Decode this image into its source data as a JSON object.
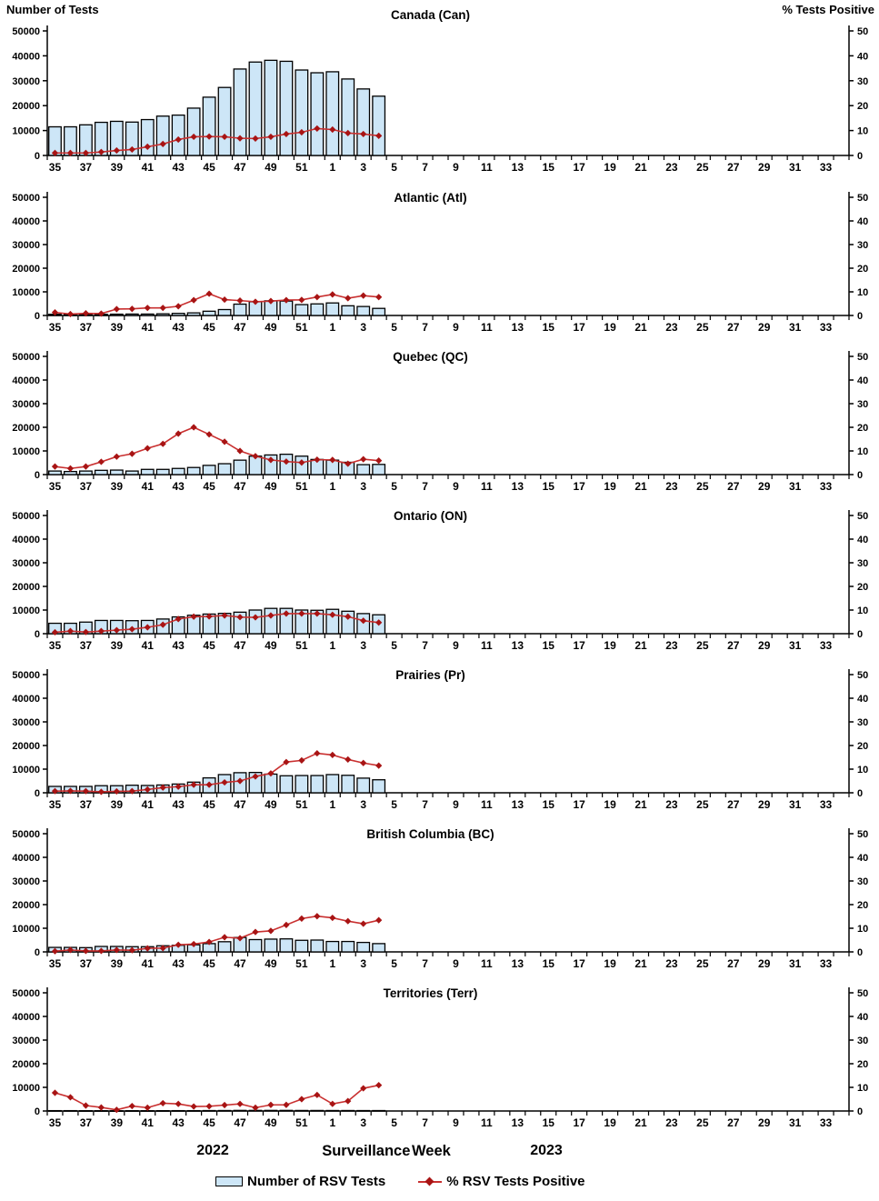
{
  "axes": {
    "left_title": "Number of Tests",
    "right_title": "% Tests Positive",
    "left_ticks": [
      "0",
      "10000",
      "20000",
      "30000",
      "40000",
      "50000"
    ],
    "right_ticks": [
      "0",
      "10",
      "20",
      "30",
      "40",
      "50"
    ],
    "left_max": 50000,
    "right_max": 50
  },
  "xaxis": {
    "tick_labels": [
      "35",
      "37",
      "39",
      "41",
      "43",
      "45",
      "47",
      "49",
      "51",
      "1",
      "3",
      "5",
      "7",
      "9",
      "11",
      "13",
      "15",
      "17",
      "19",
      "21",
      "23",
      "25",
      "27",
      "29",
      "31",
      "33"
    ]
  },
  "footer": {
    "year_left": "2022",
    "axis_title": "Surveillance Week",
    "year_right": "2023"
  },
  "legend": {
    "bar_label": "Number of RSV Tests",
    "line_label": "% RSV Tests Positive"
  },
  "colors": {
    "bar_fill": "#CDE6F7",
    "bar_border": "#000000",
    "line": "#C93030",
    "marker": "#A81414"
  },
  "chart_data": [
    {
      "type": "combo-bar-line",
      "title": "Canada (Can)",
      "x_weeks": [
        35,
        36,
        37,
        38,
        39,
        40,
        41,
        42,
        43,
        44,
        45,
        46,
        47,
        48,
        49,
        50,
        51,
        52,
        1,
        2,
        3,
        4
      ],
      "x_axis_range": "week 35 (2022) to week 34 (2023)",
      "left_ylim": [
        0,
        50000
      ],
      "right_ylim": [
        0,
        50
      ],
      "series": [
        {
          "name": "Number of RSV Tests",
          "type": "bar",
          "axis": "left",
          "values": [
            11500,
            11500,
            12300,
            13300,
            13700,
            13400,
            14400,
            15800,
            16200,
            19000,
            23400,
            27300,
            34700,
            37500,
            38200,
            37800,
            34300,
            33200,
            33600,
            30700,
            26700,
            23800
          ]
        },
        {
          "name": "% RSV Tests Positive",
          "type": "line",
          "axis": "right",
          "values": [
            1.0,
            1.0,
            1.0,
            1.4,
            2.0,
            2.4,
            3.5,
            4.6,
            6.4,
            7.5,
            7.6,
            7.5,
            6.9,
            6.8,
            7.5,
            8.6,
            9.3,
            10.8,
            10.4,
            9.0,
            8.6,
            7.9
          ]
        }
      ]
    },
    {
      "type": "combo-bar-line",
      "title": "Atlantic (Atl)",
      "x_weeks": [
        35,
        36,
        37,
        38,
        39,
        40,
        41,
        42,
        43,
        44,
        45,
        46,
        47,
        48,
        49,
        50,
        51,
        52,
        1,
        2,
        3,
        4
      ],
      "left_ylim": [
        0,
        50000
      ],
      "right_ylim": [
        0,
        50
      ],
      "series": [
        {
          "name": "Number of RSV Tests",
          "type": "bar",
          "axis": "left",
          "values": [
            500,
            450,
            500,
            500,
            550,
            600,
            600,
            700,
            900,
            1100,
            1800,
            2500,
            4800,
            5800,
            6200,
            6100,
            4600,
            4900,
            5300,
            4100,
            3800,
            3000
          ]
        },
        {
          "name": "% RSV Tests Positive",
          "type": "line",
          "axis": "right",
          "values": [
            1.3,
            0.6,
            0.9,
            0.8,
            2.7,
            2.8,
            3.2,
            3.2,
            3.9,
            6.5,
            9.2,
            6.7,
            6.3,
            5.8,
            6.1,
            6.5,
            6.6,
            7.8,
            8.9,
            7.3,
            8.4,
            7.8
          ]
        }
      ]
    },
    {
      "type": "combo-bar-line",
      "title": "Quebec (QC)",
      "x_weeks": [
        35,
        36,
        37,
        38,
        39,
        40,
        41,
        42,
        43,
        44,
        45,
        46,
        47,
        48,
        49,
        50,
        51,
        52,
        1,
        2,
        3,
        4
      ],
      "left_ylim": [
        0,
        50000
      ],
      "right_ylim": [
        0,
        50
      ],
      "series": [
        {
          "name": "Number of RSV Tests",
          "type": "bar",
          "axis": "left",
          "values": [
            1500,
            1300,
            1500,
            1800,
            1900,
            1500,
            2200,
            2200,
            2600,
            3000,
            3900,
            4600,
            6100,
            7800,
            8300,
            8600,
            7800,
            6400,
            6100,
            5200,
            4200,
            4300
          ]
        },
        {
          "name": "% RSV Tests Positive",
          "type": "line",
          "axis": "right",
          "values": [
            3.4,
            2.6,
            3.4,
            5.4,
            7.6,
            8.8,
            11.1,
            13.0,
            17.3,
            20.0,
            17.0,
            13.9,
            10.0,
            7.8,
            6.2,
            5.5,
            5.1,
            6.3,
            6.2,
            4.6,
            6.5,
            5.9
          ]
        }
      ]
    },
    {
      "type": "combo-bar-line",
      "title": "Ontario (ON)",
      "x_weeks": [
        35,
        36,
        37,
        38,
        39,
        40,
        41,
        42,
        43,
        44,
        45,
        46,
        47,
        48,
        49,
        50,
        51,
        52,
        1,
        2,
        3,
        4
      ],
      "left_ylim": [
        0,
        50000
      ],
      "right_ylim": [
        0,
        50
      ],
      "series": [
        {
          "name": "Number of RSV Tests",
          "type": "bar",
          "axis": "left",
          "values": [
            4400,
            4400,
            4900,
            5600,
            5600,
            5500,
            5600,
            6200,
            7100,
            7800,
            8300,
            8600,
            9100,
            10000,
            10700,
            10700,
            10000,
            9900,
            10300,
            9500,
            8500,
            8000
          ]
        },
        {
          "name": "% RSV Tests Positive",
          "type": "line",
          "axis": "right",
          "values": [
            0.6,
            1.1,
            0.7,
            1.1,
            1.5,
            1.9,
            2.7,
            3.8,
            6.2,
            7.2,
            7.3,
            7.7,
            7.0,
            6.9,
            7.7,
            8.5,
            8.5,
            8.5,
            8.0,
            7.2,
            5.5,
            4.7
          ]
        }
      ]
    },
    {
      "type": "combo-bar-line",
      "title": "Prairies (Pr)",
      "x_weeks": [
        35,
        36,
        37,
        38,
        39,
        40,
        41,
        42,
        43,
        44,
        45,
        46,
        47,
        48,
        49,
        50,
        51,
        52,
        1,
        2,
        3,
        4
      ],
      "left_ylim": [
        0,
        50000
      ],
      "right_ylim": [
        0,
        50
      ],
      "series": [
        {
          "name": "Number of RSV Tests",
          "type": "bar",
          "axis": "left",
          "values": [
            2700,
            2700,
            2700,
            3000,
            3000,
            3200,
            3100,
            3300,
            3700,
            4500,
            6300,
            7700,
            8500,
            8600,
            7900,
            7200,
            7300,
            7300,
            7700,
            7400,
            6200,
            5500
          ]
        },
        {
          "name": "% RSV Tests Positive",
          "type": "line",
          "axis": "right",
          "values": [
            0.7,
            0.8,
            0.7,
            0.4,
            0.6,
            0.7,
            1.4,
            2.2,
            2.6,
            3.4,
            3.4,
            4.4,
            5.0,
            6.9,
            8.2,
            13.0,
            13.7,
            16.7,
            16.0,
            14.1,
            12.6,
            11.5
          ]
        }
      ]
    },
    {
      "type": "combo-bar-line",
      "title": "British Columbia (BC)",
      "x_weeks": [
        35,
        36,
        37,
        38,
        39,
        40,
        41,
        42,
        43,
        44,
        45,
        46,
        47,
        48,
        49,
        50,
        51,
        52,
        1,
        2,
        3,
        4
      ],
      "left_ylim": [
        0,
        50000
      ],
      "right_ylim": [
        0,
        50
      ],
      "series": [
        {
          "name": "Number of RSV Tests",
          "type": "bar",
          "axis": "left",
          "values": [
            1900,
            1900,
            1800,
            2300,
            2300,
            2200,
            2200,
            2600,
            2800,
            3000,
            3500,
            4300,
            6100,
            5200,
            5400,
            5500,
            4900,
            5000,
            4400,
            4400,
            4000,
            3500
          ]
        },
        {
          "name": "% RSV Tests Positive",
          "type": "line",
          "axis": "right",
          "values": [
            0.3,
            0.8,
            0.4,
            0.4,
            0.8,
            0.7,
            1.5,
            1.6,
            3.0,
            3.3,
            4.2,
            6.2,
            5.8,
            8.4,
            8.9,
            11.4,
            14.1,
            15.1,
            14.4,
            13.0,
            11.9,
            13.4
          ]
        }
      ]
    },
    {
      "type": "combo-bar-line",
      "title": "Territories (Terr)",
      "x_weeks": [
        35,
        36,
        37,
        38,
        39,
        40,
        41,
        42,
        43,
        44,
        45,
        46,
        47,
        48,
        49,
        50,
        51,
        52,
        1,
        2,
        3,
        4
      ],
      "left_ylim": [
        0,
        50000
      ],
      "right_ylim": [
        0,
        50
      ],
      "series": [
        {
          "name": "Number of RSV Tests",
          "type": "bar",
          "axis": "left",
          "values": [
            150,
            150,
            120,
            120,
            100,
            120,
            120,
            130,
            150,
            150,
            180,
            200,
            250,
            250,
            250,
            250,
            220,
            220,
            200,
            200,
            180,
            180
          ]
        },
        {
          "name": "% RSV Tests Positive",
          "type": "line",
          "axis": "right",
          "values": [
            7.7,
            5.8,
            2.3,
            1.5,
            0.5,
            2.1,
            1.4,
            3.3,
            3.0,
            1.9,
            2.0,
            2.5,
            3.0,
            1.4,
            2.6,
            2.6,
            5.0,
            6.8,
            3.0,
            4.2,
            9.6,
            10.9
          ]
        }
      ]
    }
  ]
}
